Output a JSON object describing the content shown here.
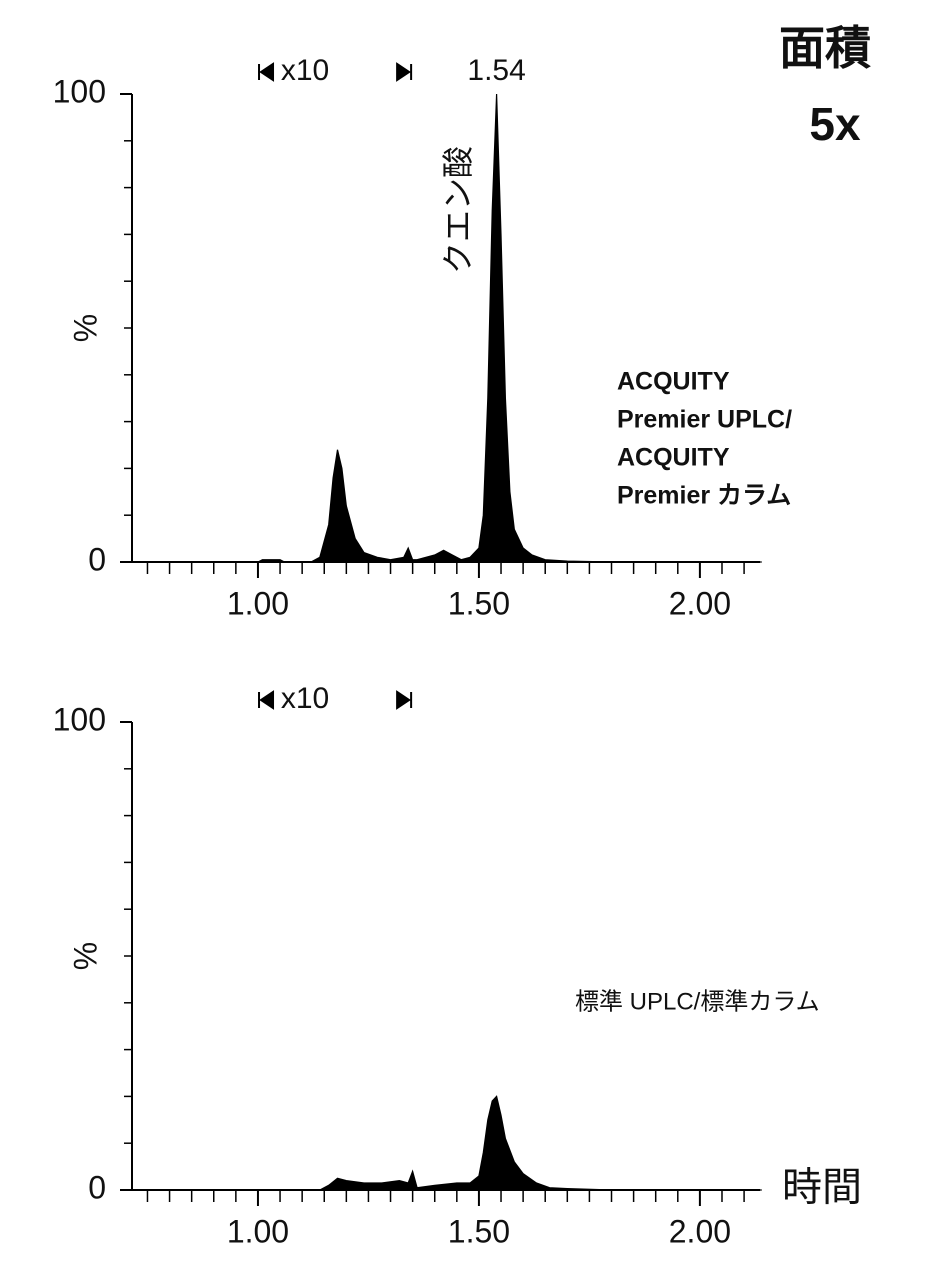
{
  "chart_data": [
    {
      "type": "area",
      "badge": [
        "面積",
        "5x"
      ],
      "ylabel": "%",
      "xlim": [
        0.715,
        2.136
      ],
      "ylim": [
        0,
        100
      ],
      "xticks": [
        {
          "value": 1,
          "label": "1.00"
        },
        {
          "value": 1.5,
          "label": "1.50"
        },
        {
          "value": 2,
          "label": "2.00"
        }
      ],
      "xminorticks": [
        0.75,
        0.8,
        0.85,
        0.9,
        0.95,
        1.05,
        1.1,
        1.15,
        1.2,
        1.25,
        1.3,
        1.35,
        1.4,
        1.45,
        1.55,
        1.6,
        1.65,
        1.7,
        1.75,
        1.8,
        1.85,
        1.9,
        1.95,
        2.05,
        2.1
      ],
      "yticks": [
        0,
        100
      ],
      "yminorticks": [
        10,
        20,
        30,
        40,
        50,
        60,
        70,
        80,
        90
      ],
      "zoom": {
        "label": "x10",
        "range": [
          1.016,
          1.333
        ]
      },
      "peak_label": {
        "text": "1.54",
        "x": 1.54
      },
      "compound_label": "クエン酸",
      "legend_lines": [
        "ACQUITY",
        "Premier UPLC/",
        "ACQUITY",
        "Premier カラム"
      ],
      "legend_bold": true,
      "color": "#000000",
      "x": [
        0.72,
        1.0,
        1.01,
        1.05,
        1.06,
        1.12,
        1.14,
        1.16,
        1.17,
        1.18,
        1.19,
        1.2,
        1.22,
        1.24,
        1.27,
        1.3,
        1.33,
        1.34,
        1.35,
        1.36,
        1.38,
        1.4,
        1.42,
        1.44,
        1.46,
        1.48,
        1.5,
        1.51,
        1.52,
        1.53,
        1.54,
        1.55,
        1.56,
        1.57,
        1.58,
        1.6,
        1.62,
        1.65,
        1.7,
        1.8,
        2.14
      ],
      "values": [
        0,
        0,
        0.5,
        0.5,
        0,
        0,
        1,
        8,
        18,
        24,
        20,
        12,
        5,
        2,
        1,
        0.5,
        1,
        3,
        0.5,
        0.5,
        1,
        1.5,
        2.5,
        1.5,
        0.5,
        1,
        3,
        10,
        35,
        75,
        100,
        70,
        35,
        15,
        7,
        3,
        1.5,
        0.5,
        0.2,
        0,
        0
      ]
    },
    {
      "type": "area",
      "ylabel": "%",
      "xlabel": "時間",
      "xlim": [
        0.715,
        2.136
      ],
      "ylim": [
        0,
        100
      ],
      "xticks": [
        {
          "value": 1,
          "label": "1.00"
        },
        {
          "value": 1.5,
          "label": "1.50"
        },
        {
          "value": 2,
          "label": "2.00"
        }
      ],
      "xminorticks": [
        0.75,
        0.8,
        0.85,
        0.9,
        0.95,
        1.05,
        1.1,
        1.15,
        1.2,
        1.25,
        1.3,
        1.35,
        1.4,
        1.45,
        1.55,
        1.6,
        1.65,
        1.7,
        1.75,
        1.8,
        1.85,
        1.9,
        1.95,
        2.05,
        2.1
      ],
      "yticks": [
        0,
        100
      ],
      "yminorticks": [
        10,
        20,
        30,
        40,
        50,
        60,
        70,
        80,
        90
      ],
      "zoom": {
        "label": "x10",
        "range": [
          1.016,
          1.333
        ]
      },
      "legend_lines": [
        "標準 UPLC/標準カラム"
      ],
      "legend_bold": false,
      "color": "#000000",
      "x": [
        0.72,
        1.0,
        1.14,
        1.16,
        1.18,
        1.2,
        1.24,
        1.28,
        1.32,
        1.34,
        1.35,
        1.36,
        1.4,
        1.45,
        1.48,
        1.5,
        1.51,
        1.52,
        1.53,
        1.54,
        1.55,
        1.56,
        1.58,
        1.6,
        1.63,
        1.66,
        1.7,
        1.8,
        2.14
      ],
      "values": [
        0,
        0,
        0,
        1,
        2.5,
        2,
        1.5,
        1.5,
        2,
        1.5,
        4,
        0.5,
        1,
        1.5,
        1.5,
        3,
        8,
        15,
        19,
        20,
        16,
        11,
        6,
        3.5,
        1.5,
        0.5,
        0.3,
        0,
        0
      ]
    }
  ]
}
